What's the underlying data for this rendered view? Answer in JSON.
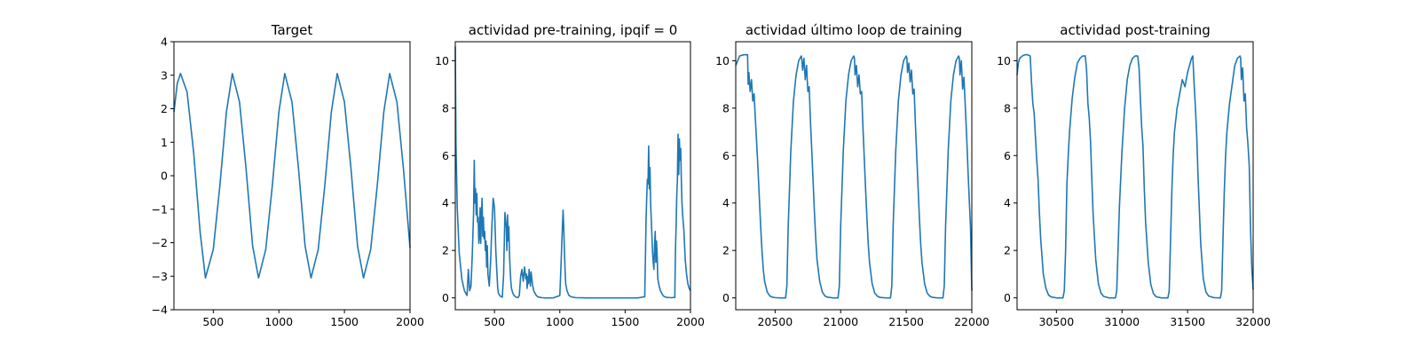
{
  "colors": {
    "line": "#1f77b4"
  },
  "chart_data": [
    {
      "type": "line",
      "title": "Target",
      "xlim": [
        200,
        2000
      ],
      "ylim": [
        -4,
        4
      ],
      "xticks": [
        500,
        1000,
        1500,
        2000
      ],
      "yticks": [
        -4,
        -3,
        -2,
        -1,
        0,
        1,
        2,
        3,
        4
      ],
      "series": [
        {
          "x": [
            200,
            225,
            250,
            300,
            350,
            400,
            440,
            500,
            550,
            600,
            645,
            700,
            750,
            800,
            845,
            900,
            950,
            1000,
            1045,
            1100,
            1150,
            1200,
            1245,
            1300,
            1350,
            1400,
            1445,
            1500,
            1550,
            1600,
            1645,
            1700,
            1750,
            1800,
            1845,
            1900,
            1950,
            2000
          ],
          "y": [
            1.9,
            2.75,
            3.05,
            2.5,
            0.7,
            -1.7,
            -3.05,
            -2.2,
            -0.3,
            1.9,
            3.05,
            2.2,
            0.2,
            -2.1,
            -3.05,
            -2.2,
            -0.3,
            1.9,
            3.05,
            2.2,
            0.2,
            -2.1,
            -3.05,
            -2.2,
            -0.3,
            1.9,
            3.05,
            2.2,
            0.2,
            -2.1,
            -3.05,
            -2.2,
            -0.3,
            1.9,
            3.05,
            2.2,
            0.2,
            -2.15
          ]
        }
      ]
    },
    {
      "type": "line",
      "title": "actividad pre-training, ipqif = 0",
      "xlim": [
        200,
        2000
      ],
      "ylim": [
        -0.5,
        10.8
      ],
      "xticks": [
        500,
        1000,
        1500,
        2000
      ],
      "yticks": [
        0,
        2,
        4,
        6,
        8,
        10
      ],
      "series": [
        {
          "x": [
            200,
            205,
            215,
            230,
            250,
            270,
            290,
            300,
            310,
            320,
            330,
            340,
            345,
            350,
            355,
            360,
            365,
            370,
            375,
            380,
            385,
            390,
            395,
            400,
            405,
            410,
            415,
            420,
            425,
            430,
            435,
            440,
            445,
            450,
            460,
            470,
            480,
            490,
            500,
            510,
            520,
            525,
            530,
            540,
            550,
            560,
            570,
            580,
            590,
            595,
            600,
            605,
            610,
            615,
            620,
            625,
            630,
            640,
            650,
            660,
            670,
            680,
            690,
            700,
            710,
            720,
            730,
            740,
            745,
            750,
            755,
            760,
            765,
            770,
            775,
            780,
            790,
            800,
            810,
            820,
            830,
            840,
            850,
            860,
            880,
            900,
            950,
            1000,
            1010,
            1020,
            1025,
            1030,
            1035,
            1040,
            1045,
            1055,
            1070,
            1090,
            1120,
            1200,
            1300,
            1400,
            1500,
            1600,
            1650,
            1655,
            1660,
            1665,
            1670,
            1675,
            1680,
            1685,
            1690,
            1695,
            1700,
            1705,
            1710,
            1715,
            1720,
            1725,
            1730,
            1735,
            1740,
            1745,
            1750,
            1760,
            1770,
            1780,
            1790,
            1800,
            1820,
            1840,
            1860,
            1880,
            1885,
            1890,
            1895,
            1900,
            1905,
            1910,
            1915,
            1920,
            1925,
            1930,
            1935,
            1940,
            1950,
            1960,
            1970,
            1980,
            1990,
            2000
          ],
          "y": [
            10.6,
            6.5,
            3.8,
            1.9,
            0.8,
            0.3,
            0.1,
            1.2,
            0.3,
            0.5,
            1.8,
            3.6,
            5.8,
            4.0,
            4.6,
            3.5,
            4.4,
            3.2,
            3.4,
            2.3,
            2.6,
            3.8,
            2.3,
            3.5,
            4.2,
            2.6,
            3.4,
            2.5,
            2.8,
            2.0,
            2.4,
            1.3,
            2.2,
            1.0,
            0.5,
            1.5,
            3.0,
            4.2,
            3.8,
            2.0,
            0.9,
            0.4,
            0.2,
            0.1,
            0.05,
            0.03,
            1.0,
            3.6,
            3.0,
            2.0,
            3.5,
            2.4,
            3.0,
            1.8,
            1.2,
            0.7,
            0.4,
            0.2,
            0.1,
            0.05,
            0.02,
            0.01,
            0.1,
            0.9,
            1.2,
            0.7,
            1.3,
            0.8,
            1.0,
            0.4,
            0.9,
            0.6,
            1.2,
            0.8,
            0.5,
            1.1,
            0.6,
            0.3,
            0.2,
            0.1,
            0.05,
            0.03,
            0.02,
            0.01,
            0,
            0,
            0,
            0.1,
            1.5,
            3.0,
            3.7,
            3.0,
            2.0,
            1.2,
            0.6,
            0.3,
            0.1,
            0.04,
            0.01,
            0,
            0,
            0,
            0,
            0,
            0.05,
            1.6,
            3.3,
            4.2,
            5.0,
            4.8,
            6.4,
            4.6,
            5.5,
            4.0,
            3.3,
            2.6,
            1.9,
            1.5,
            1.2,
            2.2,
            2.8,
            1.5,
            2.4,
            1.8,
            0.8,
            0.5,
            0.3,
            0.2,
            0.1,
            0.05,
            0.02,
            0.01,
            0.01,
            0.02,
            2.0,
            3.0,
            4.3,
            5.0,
            6.9,
            5.2,
            6.7,
            5.8,
            6.3,
            5.0,
            4.0,
            3.5,
            2.8,
            1.6,
            1.0,
            0.6,
            0.4,
            0.3
          ]
        }
      ]
    },
    {
      "type": "line",
      "title": "actividad último loop de training",
      "xlim": [
        20200,
        22000
      ],
      "ylim": [
        -0.5,
        10.8
      ],
      "xticks": [
        20500,
        21000,
        21500,
        22000
      ],
      "yticks": [
        0,
        2,
        4,
        6,
        8,
        10
      ],
      "series": [
        {
          "x": [
            20200,
            20230,
            20260,
            20290,
            20295,
            20300,
            20310,
            20320,
            20330,
            20340,
            20350,
            20360,
            20370,
            20380,
            20390,
            20400,
            20410,
            20420,
            20440,
            20460,
            20480,
            20500,
            20540,
            20580,
            20590,
            20600,
            20620,
            20640,
            20660,
            20680,
            20700,
            20705,
            20710,
            20720,
            20730,
            20740,
            20750,
            20760,
            20770,
            20780,
            20790,
            20800,
            20810,
            20820,
            20840,
            20860,
            20880,
            20900,
            20940,
            20980,
            20990,
            21000,
            21020,
            21040,
            21060,
            21080,
            21100,
            21105,
            21110,
            21120,
            21130,
            21140,
            21150,
            21160,
            21170,
            21180,
            21190,
            21200,
            21210,
            21220,
            21240,
            21260,
            21280,
            21300,
            21340,
            21380,
            21390,
            21400,
            21420,
            21440,
            21460,
            21480,
            21500,
            21505,
            21510,
            21520,
            21530,
            21540,
            21550,
            21560,
            21570,
            21580,
            21590,
            21600,
            21610,
            21620,
            21640,
            21660,
            21680,
            21700,
            21740,
            21780,
            21790,
            21800,
            21820,
            21840,
            21860,
            21880,
            21900,
            21905,
            21910,
            21920,
            21930,
            21940,
            21950,
            21960,
            21970,
            21980,
            21990,
            22000
          ],
          "y": [
            9.8,
            10.2,
            10.25,
            10.25,
            9.0,
            9.5,
            8.7,
            9.2,
            8.3,
            8.6,
            7.5,
            6.5,
            5.4,
            4.2,
            3.0,
            2.0,
            1.2,
            0.7,
            0.25,
            0.08,
            0.03,
            0.01,
            0,
            0,
            0.5,
            3.0,
            6.2,
            8.3,
            9.4,
            10.0,
            10.2,
            10.0,
            9.6,
            10.1,
            9.2,
            9.8,
            8.7,
            8.9,
            7.4,
            6.2,
            4.9,
            3.6,
            2.5,
            1.6,
            0.7,
            0.25,
            0.08,
            0.03,
            0,
            0,
            0.5,
            3.0,
            6.2,
            8.3,
            9.4,
            10.0,
            10.2,
            10.1,
            9.4,
            9.8,
            8.9,
            9.4,
            8.6,
            8.7,
            7.2,
            5.9,
            4.6,
            3.4,
            2.3,
            1.5,
            0.6,
            0.2,
            0.07,
            0.02,
            0,
            0,
            0.5,
            3.0,
            6.2,
            8.3,
            9.4,
            10.0,
            10.2,
            10.1,
            9.5,
            9.9,
            9.1,
            9.6,
            8.6,
            8.8,
            7.3,
            6.0,
            4.7,
            3.4,
            2.3,
            1.5,
            0.6,
            0.2,
            0.07,
            0.02,
            0,
            0,
            0.5,
            3.0,
            6.2,
            8.3,
            9.4,
            10.0,
            10.2,
            10.1,
            9.4,
            10.0,
            8.8,
            9.3,
            8.1,
            6.9,
            5.5,
            4.2,
            3.0,
            0.3
          ]
        }
      ]
    },
    {
      "type": "line",
      "title": "actividad post-training",
      "xlim": [
        30200,
        32000
      ],
      "ylim": [
        -0.5,
        10.8
      ],
      "xticks": [
        30500,
        31000,
        31500,
        32000
      ],
      "yticks": [
        0,
        2,
        4,
        6,
        8,
        10
      ],
      "series": [
        {
          "x": [
            30200,
            30210,
            30220,
            30240,
            30260,
            30280,
            30300,
            30310,
            30320,
            30330,
            30340,
            30350,
            30360,
            30370,
            30380,
            30400,
            30420,
            30440,
            30460,
            30500,
            30550,
            30560,
            30570,
            30580,
            30590,
            30600,
            30620,
            30640,
            30660,
            30680,
            30700,
            30720,
            30730,
            30740,
            30750,
            30760,
            30770,
            30780,
            30800,
            30820,
            30840,
            30860,
            30900,
            30950,
            30960,
            30980,
            31000,
            31020,
            31040,
            31060,
            31080,
            31100,
            31120,
            31130,
            31140,
            31150,
            31160,
            31170,
            31180,
            31200,
            31220,
            31240,
            31260,
            31300,
            31350,
            31360,
            31370,
            31380,
            31390,
            31400,
            31420,
            31440,
            31460,
            31480,
            31500,
            31520,
            31530,
            31540,
            31550,
            31560,
            31570,
            31580,
            31600,
            31620,
            31640,
            31660,
            31700,
            31750,
            31760,
            31770,
            31780,
            31790,
            31800,
            31820,
            31840,
            31860,
            31880,
            31900,
            31905,
            31910,
            31920,
            31930,
            31940,
            31950,
            31960,
            31970,
            31980,
            31990,
            32000
          ],
          "y": [
            9.4,
            9.9,
            10.1,
            10.2,
            10.25,
            10.25,
            10.2,
            9.1,
            8.2,
            7.8,
            6.8,
            5.8,
            5.0,
            3.6,
            2.5,
            1.0,
            0.4,
            0.12,
            0.04,
            0,
            0,
            0.3,
            2.0,
            4.8,
            6.0,
            7.0,
            8.4,
            9.3,
            9.9,
            10.1,
            10.2,
            10.2,
            9.6,
            8.2,
            7.6,
            6.6,
            5.0,
            3.5,
            1.6,
            0.6,
            0.2,
            0.06,
            0,
            0,
            0.3,
            3.8,
            6.2,
            8.0,
            9.2,
            9.8,
            10.1,
            10.2,
            10.2,
            9.7,
            8.4,
            7.2,
            6.4,
            4.6,
            3.2,
            1.5,
            0.55,
            0.18,
            0.05,
            0,
            0,
            0.3,
            2.4,
            4.5,
            6.0,
            7.0,
            8.0,
            8.6,
            9.2,
            8.9,
            9.5,
            9.9,
            10.1,
            10.2,
            9.0,
            8.0,
            6.8,
            5.1,
            2.3,
            0.8,
            0.25,
            0.08,
            0.01,
            0,
            0.3,
            2.5,
            4.5,
            6.0,
            7.0,
            8.2,
            9.0,
            9.8,
            10.1,
            10.2,
            10.1,
            9.2,
            9.7,
            8.3,
            8.6,
            7.2,
            6.5,
            5.6,
            2.9,
            1.2,
            0.35
          ]
        }
      ]
    }
  ]
}
